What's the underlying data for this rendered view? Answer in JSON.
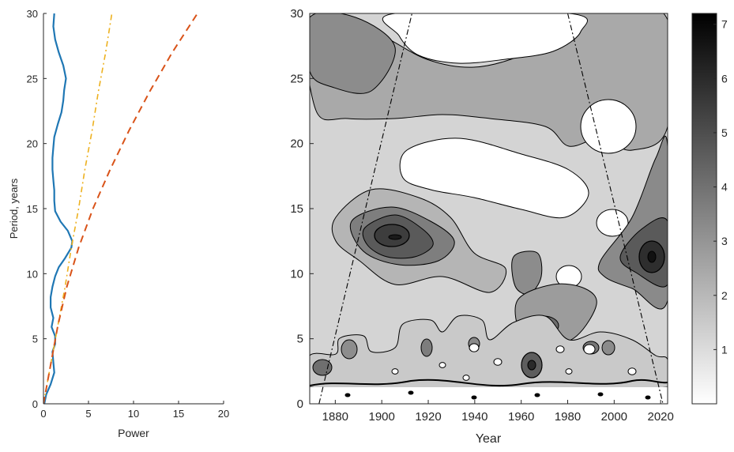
{
  "chart_data": [
    {
      "type": "line",
      "xlabel": "Power",
      "ylabel": "Period, years",
      "xlim": [
        0,
        20
      ],
      "ylim": [
        0,
        30
      ],
      "xticks": [
        0,
        5,
        10,
        15,
        20
      ],
      "yticks": [
        0,
        5,
        10,
        15,
        20,
        25,
        30
      ],
      "grid": false,
      "series": [
        {
          "style": "solid",
          "color": "#1f77b4",
          "points": [
            [
              0.1,
              0
            ],
            [
              0.3,
              0.7
            ],
            [
              0.8,
              1.5
            ],
            [
              1.2,
              2.4
            ],
            [
              1.1,
              3.2
            ],
            [
              1.0,
              4.0
            ],
            [
              1.3,
              4.6
            ],
            [
              1.3,
              5.2
            ],
            [
              0.9,
              5.9
            ],
            [
              1.1,
              6.6
            ],
            [
              0.8,
              7.4
            ],
            [
              0.8,
              8.2
            ],
            [
              1.0,
              9.0
            ],
            [
              1.3,
              9.8
            ],
            [
              1.7,
              10.5
            ],
            [
              2.4,
              11.2
            ],
            [
              3.1,
              12.0
            ],
            [
              3.2,
              12.5
            ],
            [
              2.7,
              13.3
            ],
            [
              1.9,
              14.0
            ],
            [
              1.3,
              14.8
            ],
            [
              1.2,
              15.6
            ],
            [
              1.2,
              16.4
            ],
            [
              1.1,
              17.2
            ],
            [
              1.0,
              18.0
            ],
            [
              1.0,
              18.9
            ],
            [
              1.1,
              19.7
            ],
            [
              1.2,
              20.5
            ],
            [
              1.6,
              21.5
            ],
            [
              2.0,
              22.4
            ],
            [
              2.2,
              23.3
            ],
            [
              2.3,
              24.1
            ],
            [
              2.5,
              25.0
            ],
            [
              2.2,
              26.0
            ],
            [
              1.7,
              27.0
            ],
            [
              1.3,
              28.0
            ],
            [
              1.1,
              29.0
            ],
            [
              1.2,
              30.0
            ]
          ]
        },
        {
          "style": "dash-dot",
          "color": "#edb120",
          "points": [
            [
              0,
              0
            ],
            [
              0.8,
              3
            ],
            [
              1.6,
              6
            ],
            [
              2.4,
              9
            ],
            [
              3.1,
              12
            ],
            [
              3.9,
              15
            ],
            [
              4.6,
              18
            ],
            [
              5.4,
              21
            ],
            [
              6.1,
              24
            ],
            [
              6.9,
              27
            ],
            [
              7.6,
              30
            ]
          ]
        },
        {
          "style": "dashed",
          "color": "#d95319",
          "points": [
            [
              0,
              0
            ],
            [
              0.8,
              3
            ],
            [
              1.6,
              6
            ],
            [
              2.6,
              9
            ],
            [
              3.9,
              12
            ],
            [
              5.5,
              15
            ],
            [
              7.4,
              18
            ],
            [
              9.5,
              21
            ],
            [
              11.8,
              24
            ],
            [
              14.3,
              27
            ],
            [
              17.1,
              30
            ]
          ]
        }
      ]
    },
    {
      "type": "heatmap",
      "xlabel": "Year",
      "ylabel": "",
      "xlim": [
        1869,
        2023
      ],
      "ylim": [
        0,
        30
      ],
      "xticks": [
        1880,
        1900,
        1920,
        1940,
        1960,
        1980,
        2000,
        2020
      ],
      "yticks": [
        0,
        5,
        10,
        15,
        20,
        25,
        30
      ],
      "colorbar": {
        "min": 0,
        "max": 7.2,
        "ticks": [
          1,
          2,
          3,
          4,
          5,
          6,
          7
        ],
        "colormap": "gray-reversed"
      },
      "cone_of_influence": [
        [
          [
            1873,
            0
          ],
          [
            1913,
            30
          ]
        ],
        [
          [
            1980,
            30
          ],
          [
            2021,
            0
          ]
        ]
      ],
      "peaks": [
        {
          "year": 1906,
          "period": 12.6,
          "power": 6.2
        },
        {
          "year": 2016,
          "period": 11.2,
          "power": 6.8
        },
        {
          "year": 1966,
          "period": 2.6,
          "power": 5.2
        },
        {
          "year": 1977,
          "period": 5.6,
          "power": 4.5
        },
        {
          "year": 1968,
          "period": 10.2,
          "power": 3.5
        },
        {
          "year": 1873,
          "period": 2.6,
          "power": 3.4
        },
        {
          "year": 1890,
          "period": 4.0,
          "power": 2.7
        },
        {
          "year": 1932,
          "period": 4.2,
          "power": 2.6
        },
        {
          "year": 1948,
          "period": 3.8,
          "power": 2.8
        },
        {
          "year": 1990,
          "period": 3.8,
          "power": 3.1
        },
        {
          "year": 1996,
          "period": 3.0,
          "power": 2.6
        }
      ]
    }
  ]
}
